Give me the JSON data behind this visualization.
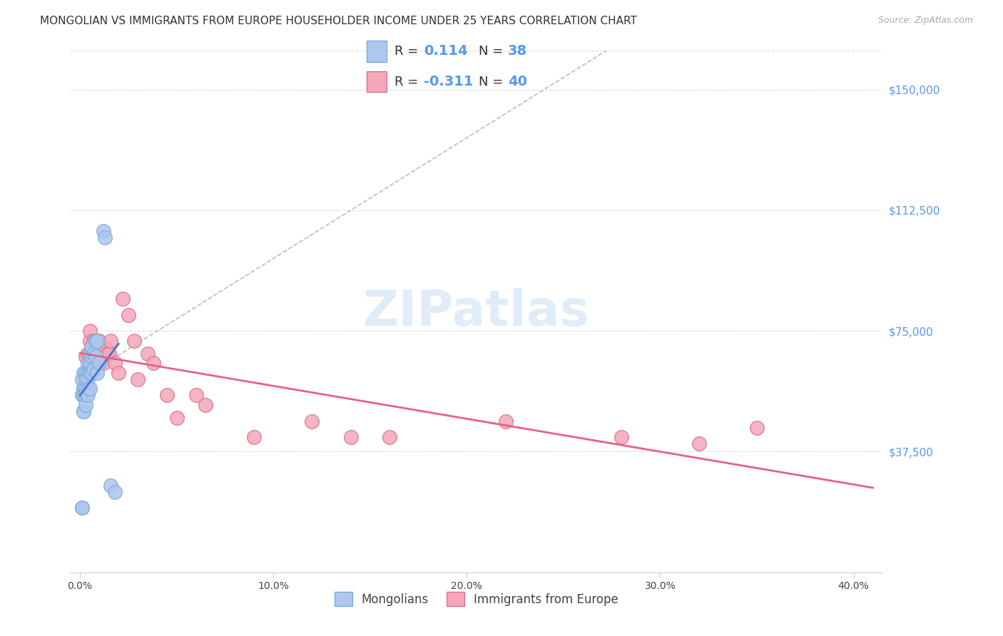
{
  "title": "MONGOLIAN VS IMMIGRANTS FROM EUROPE HOUSEHOLDER INCOME UNDER 25 YEARS CORRELATION CHART",
  "source": "Source: ZipAtlas.com",
  "xlabel_ticks": [
    "0.0%",
    "10.0%",
    "20.0%",
    "30.0%",
    "40.0%"
  ],
  "xlabel_tick_vals": [
    0.0,
    0.1,
    0.2,
    0.3,
    0.4
  ],
  "ylabel_ticks": [
    "$37,500",
    "$75,000",
    "$112,500",
    "$150,000"
  ],
  "ylabel_tick_vals": [
    37500,
    75000,
    112500,
    150000
  ],
  "xlim": [
    -0.005,
    0.415
  ],
  "ylim": [
    0,
    162000
  ],
  "mongolian_color": "#aec6f0",
  "europe_color": "#f4a7b9",
  "mongolian_edge": "#7badd6",
  "europe_edge": "#e07090",
  "trendline_mongolian_color": "#4477cc",
  "trendline_europe_color": "#e8608a",
  "diagonal_color": "#bbbbbb",
  "watermark": "ZIPatlas",
  "mongolian_x": [
    0.001,
    0.001,
    0.001,
    0.001,
    0.002,
    0.002,
    0.002,
    0.002,
    0.002,
    0.002,
    0.003,
    0.003,
    0.003,
    0.003,
    0.003,
    0.004,
    0.004,
    0.004,
    0.004,
    0.004,
    0.005,
    0.005,
    0.005,
    0.005,
    0.006,
    0.006,
    0.006,
    0.007,
    0.007,
    0.008,
    0.008,
    0.009,
    0.009,
    0.01,
    0.012,
    0.013,
    0.016,
    0.018
  ],
  "mongolian_y": [
    20000,
    20000,
    55000,
    60000,
    62000,
    57000,
    57000,
    55000,
    50000,
    50000,
    62000,
    60000,
    57000,
    55000,
    52000,
    65000,
    62000,
    60000,
    57000,
    55000,
    68000,
    65000,
    62000,
    57000,
    70000,
    67000,
    62000,
    68000,
    63000,
    72000,
    67000,
    72000,
    62000,
    65000,
    106000,
    104000,
    27000,
    25000
  ],
  "europe_x": [
    0.003,
    0.004,
    0.005,
    0.005,
    0.005,
    0.006,
    0.006,
    0.007,
    0.007,
    0.008,
    0.008,
    0.009,
    0.01,
    0.01,
    0.011,
    0.012,
    0.013,
    0.014,
    0.015,
    0.016,
    0.018,
    0.02,
    0.022,
    0.025,
    0.028,
    0.03,
    0.035,
    0.038,
    0.045,
    0.05,
    0.06,
    0.065,
    0.09,
    0.12,
    0.14,
    0.16,
    0.22,
    0.28,
    0.32,
    0.35
  ],
  "europe_y": [
    67000,
    68000,
    72000,
    68000,
    75000,
    70000,
    65000,
    72000,
    65000,
    72000,
    68000,
    68000,
    72000,
    65000,
    68000,
    65000,
    70000,
    68000,
    68000,
    72000,
    65000,
    62000,
    85000,
    80000,
    72000,
    60000,
    68000,
    65000,
    55000,
    48000,
    55000,
    52000,
    42000,
    47000,
    42000,
    42000,
    47000,
    42000,
    40000,
    45000
  ],
  "title_fontsize": 11,
  "axis_label_fontsize": 10,
  "tick_fontsize": 10,
  "legend_fontsize": 13,
  "watermark_fontsize": 50
}
